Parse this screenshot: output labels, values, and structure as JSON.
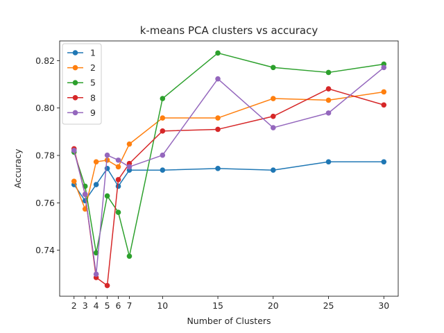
{
  "chart_data": {
    "type": "line",
    "title": "k-means PCA clusters vs accuracy",
    "xlabel": "Number of Clusters",
    "ylabel": "Accuracy",
    "x": [
      2,
      3,
      4,
      5,
      6,
      7,
      10,
      15,
      20,
      25,
      30
    ],
    "xticks": [
      2,
      3,
      4,
      5,
      6,
      7,
      10,
      15,
      20,
      25,
      30
    ],
    "xlim": [
      0.7,
      31.3
    ],
    "ylim": [
      0.7206,
      0.8283
    ],
    "yticks": [
      0.74,
      0.76,
      0.78,
      0.8,
      0.82
    ],
    "ytick_labels": [
      "0.74",
      "0.76",
      "0.78",
      "0.80",
      "0.82"
    ],
    "grid": false,
    "legend_position": "top-left",
    "series": [
      {
        "name": "1",
        "color": "#1f77b4",
        "values": [
          0.7677,
          0.7609,
          0.7677,
          0.7745,
          0.767,
          0.7738,
          0.7738,
          0.7745,
          0.7738,
          0.7773,
          0.7773
        ]
      },
      {
        "name": "2",
        "color": "#ff7f0e",
        "values": [
          0.7691,
          0.7574,
          0.7773,
          0.778,
          0.7752,
          0.7848,
          0.7958,
          0.7958,
          0.804,
          0.8033,
          0.8068
        ]
      },
      {
        "name": "5",
        "color": "#2ca02c",
        "values": [
          0.7814,
          0.767,
          0.7389,
          0.7629,
          0.756,
          0.7375,
          0.804,
          0.8232,
          0.8171,
          0.815,
          0.8185
        ]
      },
      {
        "name": "8",
        "color": "#d62728",
        "values": [
          0.7828,
          0.7636,
          0.7285,
          0.7251,
          0.7698,
          0.7766,
          0.7903,
          0.791,
          0.7965,
          0.8081,
          0.8013
        ]
      },
      {
        "name": "9",
        "color": "#9467bd",
        "values": [
          0.7821,
          0.7636,
          0.7299,
          0.7801,
          0.778,
          0.7752,
          0.7801,
          0.8123,
          0.7917,
          0.7979,
          0.8171
        ]
      }
    ]
  }
}
